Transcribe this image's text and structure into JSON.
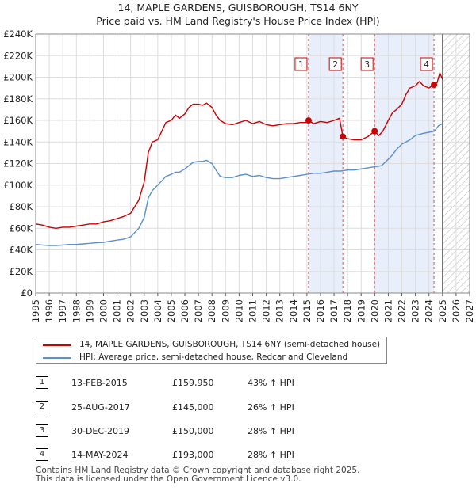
{
  "chart_data": {
    "type": "line",
    "title": "14, MAPLE GARDENS, GUISBOROUGH, TS14 6NY",
    "subtitle": "Price paid vs. HM Land Registry's House Price Index (HPI)",
    "xlabel": "",
    "ylabel": "",
    "xlim": [
      1995,
      2027
    ],
    "ylim": [
      0,
      240000
    ],
    "x_ticks": [
      "1995",
      "1996",
      "1997",
      "1998",
      "1999",
      "2000",
      "2001",
      "2002",
      "2003",
      "2004",
      "2005",
      "2006",
      "2007",
      "2008",
      "2009",
      "2010",
      "2011",
      "2012",
      "2013",
      "2014",
      "2015",
      "2016",
      "2017",
      "2018",
      "2019",
      "2020",
      "2021",
      "2022",
      "2023",
      "2024",
      "2025",
      "2026",
      "2027"
    ],
    "y_ticks": [
      "£0",
      "£20K",
      "£40K",
      "£60K",
      "£80K",
      "£100K",
      "£120K",
      "£140K",
      "£160K",
      "£180K",
      "£200K",
      "£220K",
      "£240K"
    ],
    "grid": true,
    "forecast_start": 2025.0,
    "series": [
      {
        "name": "14, MAPLE GARDENS, GUISBOROUGH, TS14 6NY (semi-detached house)",
        "color": "#cc0000",
        "x": [
          1995.0,
          1995.5,
          1996.0,
          1996.5,
          1997.0,
          1997.5,
          1998.0,
          1998.5,
          1999.0,
          1999.5,
          2000.0,
          2000.5,
          2001.0,
          2001.5,
          2002.0,
          2002.3,
          2002.6,
          2003.0,
          2003.3,
          2003.6,
          2004.0,
          2004.3,
          2004.6,
          2005.0,
          2005.3,
          2005.6,
          2006.0,
          2006.3,
          2006.6,
          2007.0,
          2007.3,
          2007.6,
          2008.0,
          2008.3,
          2008.6,
          2009.0,
          2009.5,
          2010.0,
          2010.5,
          2011.0,
          2011.5,
          2012.0,
          2012.5,
          2013.0,
          2013.5,
          2014.0,
          2014.5,
          2015.0,
          2015.12,
          2015.5,
          2016.0,
          2016.5,
          2017.0,
          2017.4,
          2017.65,
          2018.0,
          2018.5,
          2019.0,
          2019.5,
          2019.99,
          2020.3,
          2020.6,
          2021.0,
          2021.3,
          2021.6,
          2022.0,
          2022.3,
          2022.6,
          2023.0,
          2023.3,
          2023.6,
          2024.0,
          2024.37,
          2024.6,
          2024.8,
          2025.0
        ],
        "values": [
          64000,
          63000,
          61000,
          60000,
          61000,
          61000,
          62000,
          63000,
          64000,
          64000,
          66000,
          67000,
          69000,
          71000,
          74000,
          80000,
          86000,
          103000,
          130000,
          140000,
          142000,
          150000,
          158000,
          160000,
          165000,
          162000,
          166000,
          172000,
          175000,
          175000,
          174000,
          176000,
          172000,
          165000,
          160000,
          157000,
          156000,
          158000,
          160000,
          157000,
          159000,
          156000,
          155000,
          156000,
          157000,
          157000,
          158000,
          158000,
          159950,
          157000,
          159000,
          158000,
          160000,
          162000,
          145000,
          143000,
          142000,
          142000,
          145000,
          150000,
          146000,
          150000,
          160000,
          167000,
          170000,
          175000,
          184000,
          190000,
          192000,
          196000,
          192000,
          190000,
          193000,
          195000,
          204000,
          198000
        ]
      },
      {
        "name": "HPI: Average price, semi-detached house, Redcar and Cleveland",
        "color": "#5b8fd0",
        "x": [
          1995.0,
          1995.5,
          1996.0,
          1996.5,
          1997.0,
          1997.5,
          1998.0,
          1998.5,
          1999.0,
          1999.5,
          2000.0,
          2000.5,
          2001.0,
          2001.5,
          2002.0,
          2002.3,
          2002.6,
          2003.0,
          2003.3,
          2003.6,
          2004.0,
          2004.3,
          2004.6,
          2005.0,
          2005.3,
          2005.6,
          2006.0,
          2006.3,
          2006.6,
          2007.0,
          2007.3,
          2007.6,
          2008.0,
          2008.3,
          2008.6,
          2009.0,
          2009.5,
          2010.0,
          2010.5,
          2011.0,
          2011.5,
          2012.0,
          2012.5,
          2013.0,
          2013.5,
          2014.0,
          2014.5,
          2015.0,
          2015.5,
          2016.0,
          2016.5,
          2017.0,
          2017.5,
          2018.0,
          2018.5,
          2019.0,
          2019.5,
          2020.0,
          2020.5,
          2021.0,
          2021.3,
          2021.6,
          2022.0,
          2022.3,
          2022.6,
          2023.0,
          2023.3,
          2023.6,
          2024.0,
          2024.4,
          2024.7,
          2025.0
        ],
        "values": [
          45000,
          44500,
          44000,
          44000,
          44500,
          45000,
          45000,
          45500,
          46000,
          46500,
          47000,
          48000,
          49000,
          50000,
          52000,
          56000,
          60000,
          70000,
          88000,
          95000,
          100000,
          104000,
          108000,
          110000,
          112000,
          112000,
          115000,
          118000,
          121000,
          122000,
          122000,
          123000,
          120000,
          114000,
          108000,
          107000,
          107000,
          109000,
          110000,
          108000,
          109000,
          107000,
          106000,
          106000,
          107000,
          108000,
          109000,
          110000,
          111000,
          111000,
          112000,
          113000,
          113000,
          114000,
          114000,
          115000,
          116000,
          117000,
          118000,
          124000,
          128000,
          133000,
          138000,
          140000,
          142000,
          146000,
          147000,
          148000,
          149000,
          150000,
          155000,
          157000
        ]
      }
    ],
    "transactions": [
      {
        "label": "1",
        "x": 2015.12,
        "y": 159950
      },
      {
        "label": "2",
        "x": 2017.65,
        "y": 145000
      },
      {
        "label": "3",
        "x": 2019.99,
        "y": 150000
      },
      {
        "label": "4",
        "x": 2024.37,
        "y": 193000
      }
    ]
  },
  "legend": {
    "property_label": "14, MAPLE GARDENS, GUISBOROUGH, TS14 6NY (semi-detached house)",
    "hpi_label": "HPI: Average price, semi-detached house, Redcar and Cleveland"
  },
  "table": {
    "rows": [
      {
        "num": "1",
        "date": "13-FEB-2015",
        "price": "£159,950",
        "hpi": "43% ↑ HPI"
      },
      {
        "num": "2",
        "date": "25-AUG-2017",
        "price": "£145,000",
        "hpi": "26% ↑ HPI"
      },
      {
        "num": "3",
        "date": "30-DEC-2019",
        "price": "£150,000",
        "hpi": "28% ↑ HPI"
      },
      {
        "num": "4",
        "date": "14-MAY-2024",
        "price": "£193,000",
        "hpi": "28% ↑ HPI"
      }
    ]
  },
  "footer": {
    "line1": "Contains HM Land Registry data © Crown copyright and database right 2025.",
    "line2": "This data is licensed under the Open Government Licence v3.0."
  }
}
